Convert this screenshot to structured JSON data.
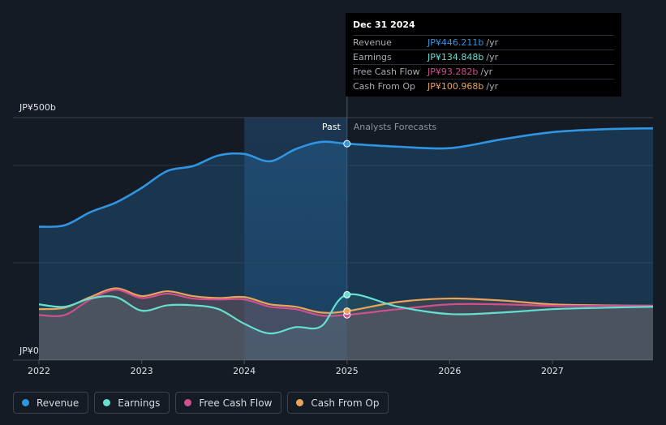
{
  "chart_data": {
    "type": "area",
    "y_unit_labels": {
      "top": "JP¥500b",
      "bottom": "JP¥0"
    },
    "ylim": [
      0,
      500
    ],
    "xlim": [
      2022.0,
      2027.98
    ],
    "x_ticks": [
      {
        "value": 2022,
        "label": "2022"
      },
      {
        "value": 2023,
        "label": "2023"
      },
      {
        "value": 2024,
        "label": "2024"
      },
      {
        "value": 2025,
        "label": "2025"
      },
      {
        "value": 2026,
        "label": "2026"
      },
      {
        "value": 2027,
        "label": "2027"
      }
    ],
    "divider_x": 2025.0,
    "highlight_start_x": 2024.0,
    "past_label": "Past",
    "forecast_label": "Analysts Forecasts",
    "series": [
      {
        "name": "Revenue",
        "key": "revenue",
        "color": "#2f95e3",
        "points": [
          [
            2022.0,
            275
          ],
          [
            2022.25,
            278
          ],
          [
            2022.5,
            305
          ],
          [
            2022.75,
            325
          ],
          [
            2023.0,
            355
          ],
          [
            2023.25,
            390
          ],
          [
            2023.5,
            400
          ],
          [
            2023.75,
            422
          ],
          [
            2024.0,
            425
          ],
          [
            2024.25,
            410
          ],
          [
            2024.5,
            435
          ],
          [
            2024.75,
            450
          ],
          [
            2025.0,
            446.2
          ],
          [
            2025.5,
            440
          ],
          [
            2026.0,
            437
          ],
          [
            2026.5,
            455
          ],
          [
            2027.0,
            470
          ],
          [
            2027.5,
            476
          ],
          [
            2027.98,
            478
          ]
        ]
      },
      {
        "name": "Earnings",
        "key": "earnings",
        "color": "#64e0d2",
        "points": [
          [
            2022.0,
            115
          ],
          [
            2022.25,
            110
          ],
          [
            2022.5,
            127
          ],
          [
            2022.75,
            130
          ],
          [
            2023.0,
            102
          ],
          [
            2023.25,
            113
          ],
          [
            2023.5,
            113
          ],
          [
            2023.75,
            105
          ],
          [
            2024.0,
            75
          ],
          [
            2024.25,
            55
          ],
          [
            2024.5,
            68
          ],
          [
            2024.75,
            70
          ],
          [
            2025.0,
            134.8
          ],
          [
            2025.5,
            110
          ],
          [
            2026.0,
            95
          ],
          [
            2026.5,
            98
          ],
          [
            2027.0,
            105
          ],
          [
            2027.5,
            108
          ],
          [
            2027.98,
            110
          ]
        ]
      },
      {
        "name": "Free Cash Flow",
        "key": "fcf",
        "color": "#d14f8f",
        "points": [
          [
            2022.0,
            93
          ],
          [
            2022.25,
            93
          ],
          [
            2022.5,
            125
          ],
          [
            2022.75,
            145
          ],
          [
            2023.0,
            128
          ],
          [
            2023.25,
            137
          ],
          [
            2023.5,
            127
          ],
          [
            2023.75,
            125
          ],
          [
            2024.0,
            125
          ],
          [
            2024.25,
            110
          ],
          [
            2024.5,
            105
          ],
          [
            2024.75,
            92
          ],
          [
            2025.0,
            93.3
          ],
          [
            2025.5,
            105
          ],
          [
            2026.0,
            115
          ],
          [
            2026.5,
            115
          ],
          [
            2027.0,
            112
          ],
          [
            2027.5,
            112
          ],
          [
            2027.98,
            112
          ]
        ]
      },
      {
        "name": "Cash From Op",
        "key": "cfo",
        "color": "#e9a45b",
        "points": [
          [
            2022.0,
            105
          ],
          [
            2022.25,
            108
          ],
          [
            2022.5,
            130
          ],
          [
            2022.75,
            148
          ],
          [
            2023.0,
            132
          ],
          [
            2023.25,
            142
          ],
          [
            2023.5,
            132
          ],
          [
            2023.75,
            128
          ],
          [
            2024.0,
            130
          ],
          [
            2024.25,
            115
          ],
          [
            2024.5,
            110
          ],
          [
            2024.75,
            98
          ],
          [
            2025.0,
            101
          ],
          [
            2025.5,
            120
          ],
          [
            2026.0,
            127
          ],
          [
            2026.5,
            123
          ],
          [
            2027.0,
            115
          ],
          [
            2027.5,
            113
          ],
          [
            2027.98,
            112
          ]
        ]
      }
    ]
  },
  "tooltip": {
    "date": "Dec 31 2024",
    "rows": [
      {
        "label": "Revenue",
        "value": "JP¥446.211b",
        "unit": "/yr",
        "color": "#2f95e3"
      },
      {
        "label": "Earnings",
        "value": "JP¥134.848b",
        "unit": "/yr",
        "color": "#64e0d2"
      },
      {
        "label": "Free Cash Flow",
        "value": "JP¥93.282b",
        "unit": "/yr",
        "color": "#d14f8f"
      },
      {
        "label": "Cash From Op",
        "value": "JP¥100.968b",
        "unit": "/yr",
        "color": "#e9a45b"
      }
    ]
  },
  "legend": [
    {
      "label": "Revenue",
      "color": "#2f95e3"
    },
    {
      "label": "Earnings",
      "color": "#64e0d2"
    },
    {
      "label": "Free Cash Flow",
      "color": "#d14f8f"
    },
    {
      "label": "Cash From Op",
      "color": "#e9a45b"
    }
  ]
}
